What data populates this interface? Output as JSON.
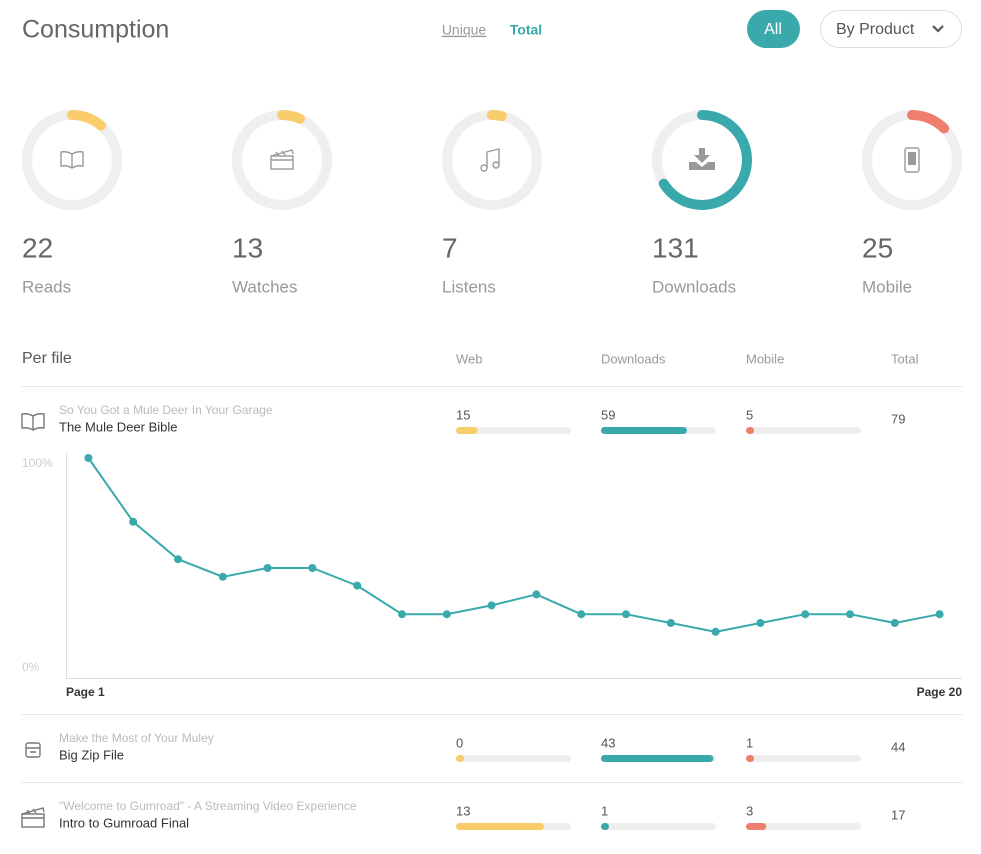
{
  "header": {
    "title": "Consumption",
    "toggles": [
      "Unique",
      "Total"
    ],
    "buttons": [
      "All",
      "By Product"
    ]
  },
  "stats": [
    {
      "value": 22,
      "label": "Reads",
      "color": "#f9cd6b"
    },
    {
      "value": 13,
      "label": "Watches",
      "color": "#f9cd6b"
    },
    {
      "value": 7,
      "label": "Listens",
      "color": "#f9cd6b"
    },
    {
      "value": 131,
      "label": "Downloads",
      "color": "#3aa9ab"
    },
    {
      "value": 25,
      "label": "Mobile",
      "color": "#ef7f6c"
    }
  ],
  "table": {
    "title": "Per file",
    "columns": [
      "Web",
      "Downloads",
      "Mobile",
      "Total"
    ],
    "colors": [
      "#f9cd6b",
      "#3aa9ab",
      "#ef7f6c"
    ],
    "rows": [
      {
        "subtitle": "So You Got a Mule Deer In Your Garage",
        "name": "The Mule Deer Bible",
        "icon": "book",
        "web": 15,
        "downloads": 59,
        "mobile": 5,
        "total": 79
      },
      {
        "subtitle": "Make the Most of Your Muley",
        "name": "Big Zip File",
        "icon": "box",
        "web": 0,
        "downloads": 43,
        "mobile": 1,
        "total": 44
      },
      {
        "subtitle": "\"Welcome to Gumroad\" - A Streaming Video Experience",
        "name": "Intro to Gumroad Final",
        "icon": "film",
        "web": 13,
        "downloads": 1,
        "mobile": 3,
        "total": 17
      }
    ]
  },
  "chart_data": {
    "type": "line",
    "x": [
      1,
      2,
      3,
      4,
      5,
      6,
      7,
      8,
      9,
      10,
      11,
      12,
      13,
      14,
      15,
      16,
      17,
      18,
      19,
      20
    ],
    "series": [
      {
        "color": "#3aa9ab",
        "values": [
          100,
          71,
          54,
          46,
          50,
          50,
          42,
          29,
          29,
          33,
          38,
          29,
          29,
          25,
          21,
          25,
          29,
          29,
          25,
          29
        ]
      }
    ],
    "xlim": [
      0.5,
      20.5
    ],
    "xticks": [
      {
        "value": 1,
        "label": "Page 1"
      },
      {
        "value": 20,
        "label": "Page 20"
      }
    ],
    "ylim": [
      0,
      100
    ],
    "yticks": [
      {
        "value": 100,
        "label": "100%"
      },
      {
        "value": 0,
        "label": "0%"
      }
    ]
  }
}
